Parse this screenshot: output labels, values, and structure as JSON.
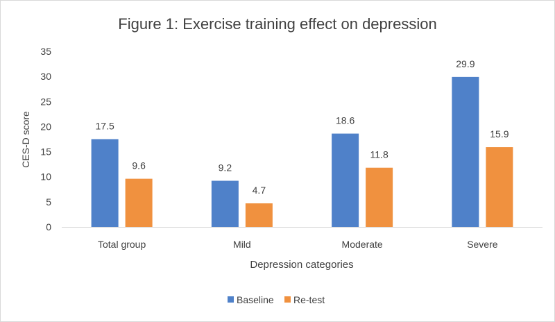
{
  "chart_data": {
    "type": "bar",
    "title": "Figure 1: Exercise training effect on depression",
    "xlabel": "Depression categories",
    "ylabel": "CES-D score",
    "categories": [
      "Total group",
      "Mild",
      "Moderate",
      "Severe"
    ],
    "series": [
      {
        "name": "Baseline",
        "values": [
          17.5,
          9.2,
          18.6,
          29.9
        ],
        "color": "#4f81c9"
      },
      {
        "name": "Re-test",
        "values": [
          9.6,
          4.7,
          11.8,
          15.9
        ],
        "color": "#f0913f"
      }
    ],
    "ylim": [
      0,
      35
    ],
    "yticks": [
      0,
      5,
      10,
      15,
      20,
      25,
      30,
      35
    ],
    "grid": false,
    "legend": "bottom",
    "data_labels": true
  }
}
